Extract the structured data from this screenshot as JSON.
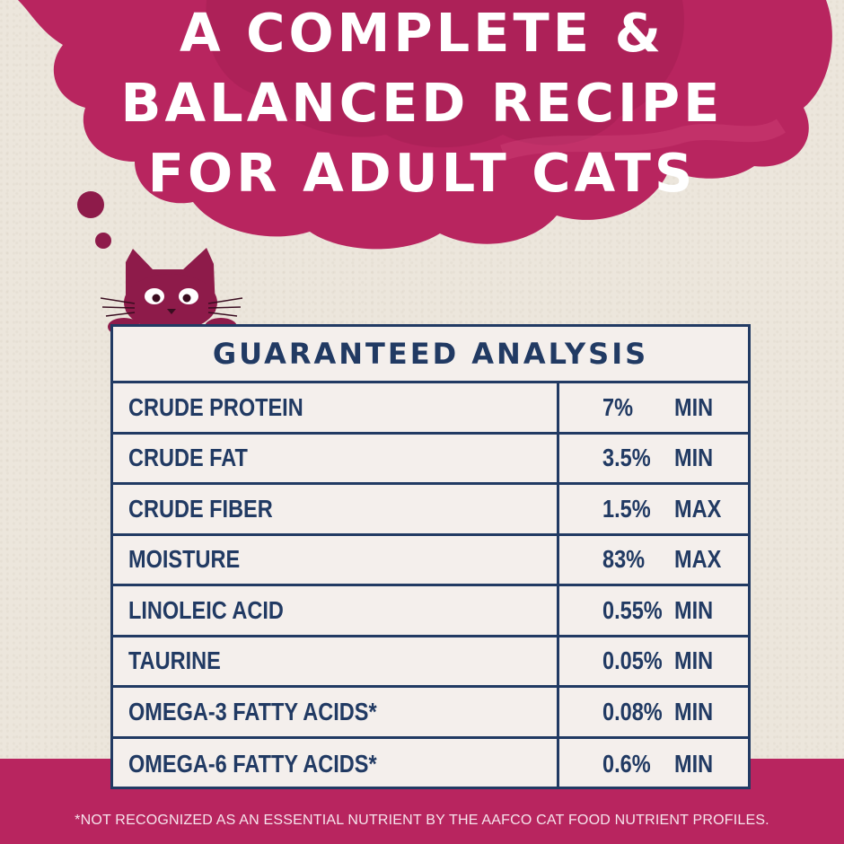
{
  "headline": {
    "line1": "A COMPLETE &",
    "line2": "BALANCED RECIPE",
    "line3": "FOR ADULT CATS"
  },
  "analysis": {
    "title": "GUARANTEED ANALYSIS",
    "rows": [
      {
        "name": "CRUDE PROTEIN",
        "value": "7%",
        "unit": "MIN"
      },
      {
        "name": "CRUDE FAT",
        "value": "3.5%",
        "unit": "MIN"
      },
      {
        "name": "CRUDE FIBER",
        "value": "1.5%",
        "unit": "MAX"
      },
      {
        "name": "MOISTURE",
        "value": "83%",
        "unit": "MAX"
      },
      {
        "name": "LINOLEIC ACID",
        "value": "0.55%",
        "unit": "MIN"
      },
      {
        "name": "TAURINE",
        "value": "0.05%",
        "unit": "MIN"
      },
      {
        "name": "OMEGA-3 FATTY ACIDS*",
        "value": "0.08%",
        "unit": "MIN"
      },
      {
        "name": "OMEGA-6 FATTY ACIDS*",
        "value": "0.6%",
        "unit": "MIN"
      }
    ]
  },
  "footnote": "*NOT RECOGNIZED AS AN ESSENTIAL NUTRIENT BY THE AAFCO CAT FOOD NUTRIENT PROFILES.",
  "colors": {
    "brand_pink": "#b8255f",
    "navy": "#213a63",
    "paper": "#ece6dc"
  },
  "icons": [
    "cat-icon",
    "thought-bubble-icon"
  ]
}
